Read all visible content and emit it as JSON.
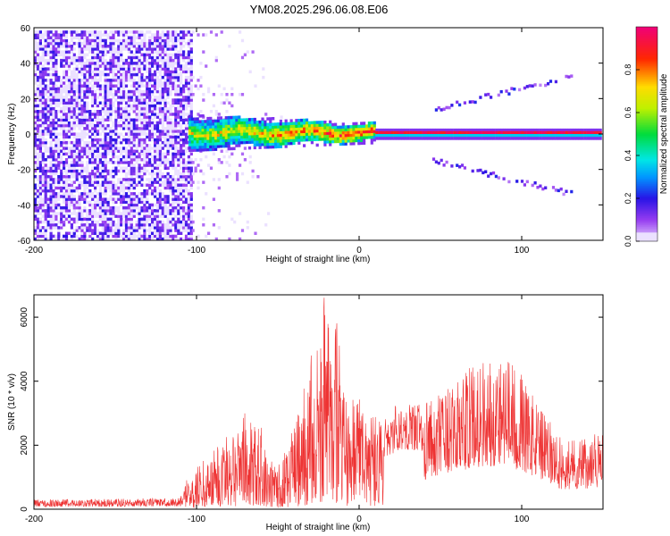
{
  "title": "YM08.2025.296.06.08.E06",
  "colors": {
    "snr_line": "#ee3333",
    "spectral_low": "#e8d8ff",
    "spectral_high": "#ff0000"
  },
  "chart_data": [
    {
      "type": "heatmap",
      "title": "YM08.2025.296.06.08.E06",
      "xlabel": "Height of straight line (km)",
      "ylabel": "Frequency (Hz)",
      "xlim": [
        -200,
        150
      ],
      "ylim": [
        -60,
        60
      ],
      "xticks": [
        -200,
        -100,
        0,
        100
      ],
      "yticks": [
        -60,
        -40,
        -20,
        0,
        20,
        40,
        60
      ],
      "xtick_labels": [
        "-200",
        "-100",
        "0",
        "100"
      ],
      "ytick_labels": [
        "-60",
        "-40",
        "-20",
        "0",
        "20",
        "40",
        "60"
      ],
      "colorbar": {
        "label": "Normalized spectral amplitude",
        "range": [
          0,
          1
        ],
        "ticks": [
          0,
          0.2,
          0.4,
          0.6,
          0.8
        ],
        "tick_labels": [
          "0.0",
          "0.2",
          "0.4",
          "0.6",
          "0.8"
        ]
      },
      "regions": [
        {
          "x_range": [
            -200,
            -103
          ],
          "y_range": [
            -60,
            60
          ],
          "amplitude_range": [
            0.05,
            0.2
          ]
        },
        {
          "x_range": [
            -105,
            10
          ],
          "center_hz": 0,
          "halfwidth_hz": 8,
          "amplitude_range": [
            0.3,
            0.9
          ]
        },
        {
          "x_range": [
            10,
            150
          ],
          "center_hz": 0,
          "halfwidth_hz": 1.5,
          "amplitude_range": [
            0.9,
            1.0
          ]
        },
        {
          "x_range": [
            45,
            130
          ],
          "center_hz": "±(13..30)",
          "amplitude_range": [
            0.05,
            0.25
          ]
        }
      ]
    },
    {
      "type": "line",
      "xlabel": "Height of straight line (km)",
      "ylabel": "SNR (10 * v/v)",
      "xlim": [
        -200,
        150
      ],
      "ylim": [
        0,
        6700
      ],
      "xticks": [
        -200,
        -100,
        0,
        100
      ],
      "yticks": [
        0,
        2000,
        4000,
        6000
      ],
      "xtick_labels": [
        "-200",
        "-100",
        "0",
        "100"
      ],
      "ytick_labels": [
        "0",
        "2000",
        "4000",
        "6000"
      ],
      "envelope": [
        {
          "x": -200,
          "max": 300
        },
        {
          "x": -110,
          "max": 350
        },
        {
          "x": -105,
          "max": 1100
        },
        {
          "x": -90,
          "max": 1800
        },
        {
          "x": -80,
          "max": 2600
        },
        {
          "x": -70,
          "max": 3100
        },
        {
          "x": -60,
          "max": 2600
        },
        {
          "x": -55,
          "max": 1500
        },
        {
          "x": -45,
          "max": 1800
        },
        {
          "x": -35,
          "max": 3500
        },
        {
          "x": -30,
          "max": 4900
        },
        {
          "x": -25,
          "max": 5400
        },
        {
          "x": -22,
          "max": 6700
        },
        {
          "x": -20,
          "max": 6400
        },
        {
          "x": -17,
          "max": 5600
        },
        {
          "x": -14,
          "max": 6300
        },
        {
          "x": -10,
          "max": 3800
        },
        {
          "x": -5,
          "max": 3200
        },
        {
          "x": 0,
          "max": 4400
        },
        {
          "x": 5,
          "max": 3000
        },
        {
          "x": 15,
          "max": 2800
        },
        {
          "x": 25,
          "max": 3400
        },
        {
          "x": 40,
          "max": 3300
        },
        {
          "x": 60,
          "max": 4000
        },
        {
          "x": 70,
          "max": 4600
        },
        {
          "x": 80,
          "max": 4800
        },
        {
          "x": 90,
          "max": 4900
        },
        {
          "x": 100,
          "max": 4200
        },
        {
          "x": 110,
          "max": 3300
        },
        {
          "x": 125,
          "max": 2200
        },
        {
          "x": 140,
          "max": 2300
        },
        {
          "x": 150,
          "max": 2400
        }
      ]
    }
  ]
}
